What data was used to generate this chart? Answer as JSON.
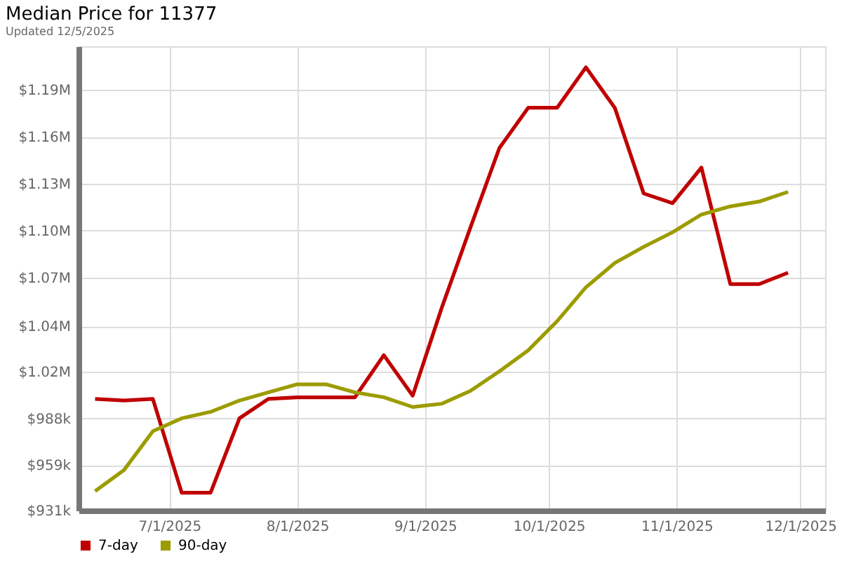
{
  "chart_data": {
    "type": "line",
    "title": "Median Price for 11377",
    "subtitle": "Updated 12/5/2025",
    "x": [
      "2025-06-13",
      "2025-06-20",
      "2025-06-27",
      "2025-07-04",
      "2025-07-11",
      "2025-07-18",
      "2025-07-25",
      "2025-08-01",
      "2025-08-08",
      "2025-08-15",
      "2025-08-22",
      "2025-08-29",
      "2025-09-05",
      "2025-09-12",
      "2025-09-19",
      "2025-09-26",
      "2025-10-03",
      "2025-10-10",
      "2025-10-17",
      "2025-10-24",
      "2025-10-31",
      "2025-11-07",
      "2025-11-14",
      "2025-11-21",
      "2025-11-28"
    ],
    "series": [
      {
        "name": "7-day",
        "color": "#c00000",
        "values": [
          1000000,
          999000,
          1000000,
          942000,
          942000,
          988000,
          1000000,
          1001000,
          1001000,
          1001000,
          1027000,
          1002000,
          1056000,
          1106000,
          1155000,
          1180000,
          1180000,
          1205000,
          1180000,
          1127000,
          1121000,
          1143000,
          1071000,
          1071000,
          1078000
        ]
      },
      {
        "name": "90-day",
        "color": "#9c9c00",
        "values": [
          943000,
          956000,
          980000,
          988000,
          992000,
          999000,
          1004000,
          1009000,
          1009000,
          1004000,
          1001000,
          995000,
          997000,
          1005000,
          1017000,
          1030000,
          1048000,
          1069000,
          1084000,
          1094000,
          1103000,
          1114000,
          1119000,
          1122000,
          1128000
        ]
      }
    ],
    "xlim": [
      "2025-06-09",
      "2025-12-07"
    ],
    "xticks": [
      {
        "value": "2025-07-01",
        "label": "7/1/2025"
      },
      {
        "value": "2025-08-01",
        "label": "8/1/2025"
      },
      {
        "value": "2025-09-01",
        "label": "9/1/2025"
      },
      {
        "value": "2025-10-01",
        "label": "10/1/2025"
      },
      {
        "value": "2025-11-01",
        "label": "11/1/2025"
      },
      {
        "value": "2025-12-01",
        "label": "12/1/2025"
      }
    ],
    "ylim": [
      931000,
      1218000
    ],
    "yticks": [
      {
        "value": 931000,
        "label": "$931k"
      },
      {
        "value": 959000,
        "label": "$959k"
      },
      {
        "value": 988000,
        "label": "$988k"
      },
      {
        "value": 1017000,
        "label": "$1.02M"
      },
      {
        "value": 1044900,
        "label": "$1.04M"
      },
      {
        "value": 1074900,
        "label": "$1.07M"
      },
      {
        "value": 1104000,
        "label": "$1.10M"
      },
      {
        "value": 1133000,
        "label": "$1.13M"
      },
      {
        "value": 1162000,
        "label": "$1.16M"
      },
      {
        "value": 1191000,
        "label": "$1.19M"
      }
    ],
    "grid": true,
    "legend": "bottom left",
    "marker": "none",
    "line_style": "solid"
  }
}
